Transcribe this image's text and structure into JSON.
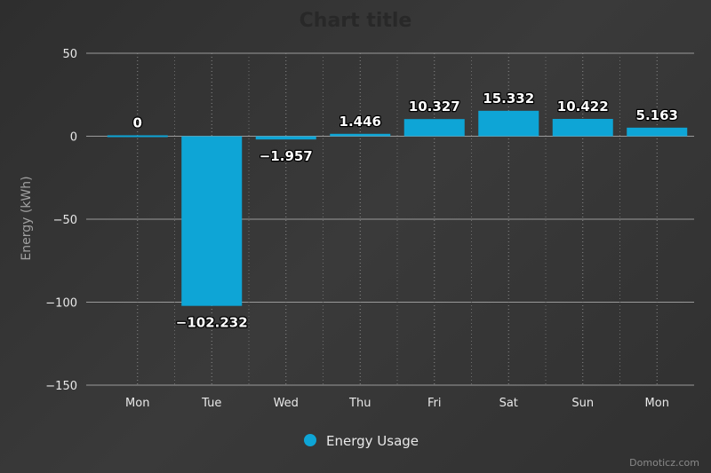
{
  "chart_data": {
    "type": "bar",
    "title": "Chart title",
    "ylabel": "Energy (kWh)",
    "xlabel": "",
    "categories": [
      "Mon",
      "Tue",
      "Wed",
      "Thu",
      "Fri",
      "Sat",
      "Sun",
      "Mon"
    ],
    "series": [
      {
        "name": "Energy Usage",
        "values": [
          0,
          -102.232,
          -1.957,
          1.446,
          10.327,
          15.332,
          10.422,
          5.163
        ],
        "labels": [
          "0",
          "−102.232",
          "−1.957",
          "1.446",
          "10.327",
          "15.332",
          "10.422",
          "5.163"
        ],
        "color": "#0ea5d6"
      }
    ],
    "ylim": [
      -150,
      50
    ],
    "yticks": [
      50,
      0,
      -50,
      -100,
      -150
    ],
    "ytick_labels": [
      "50",
      "0",
      "−50",
      "−100",
      "−150"
    ],
    "grid": true,
    "legend": "bottom-center"
  },
  "credit": "Domoticz.com"
}
